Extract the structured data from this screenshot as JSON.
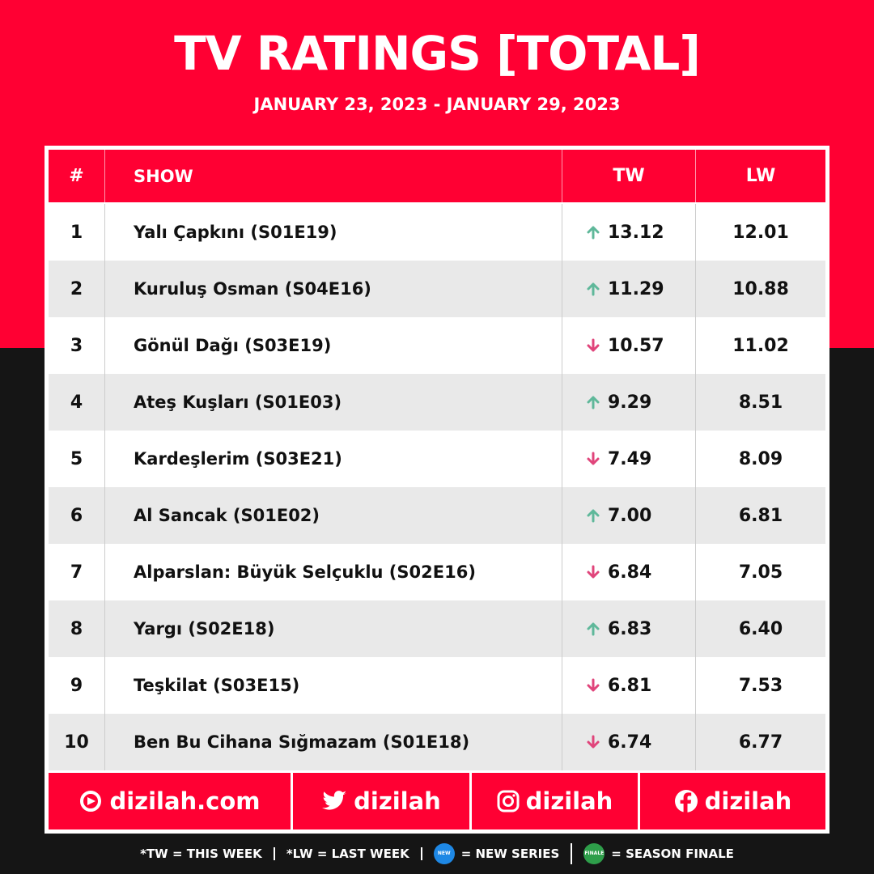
{
  "header": {
    "title": "TV RATINGS [TOTAL]",
    "subtitle": "JANUARY 23, 2023 - JANUARY 29, 2023"
  },
  "table": {
    "columns": [
      "#",
      "SHOW",
      "TW",
      "LW"
    ],
    "rows": [
      {
        "rank": 1,
        "show": "Yalı Çapkını (S01E19)",
        "tw": "13.12",
        "lw": "12.01",
        "trend": "up"
      },
      {
        "rank": 2,
        "show": "Kuruluş Osman (S04E16)",
        "tw": "11.29",
        "lw": "10.88",
        "trend": "up"
      },
      {
        "rank": 3,
        "show": "Gönül Dağı (S03E19)",
        "tw": "10.57",
        "lw": "11.02",
        "trend": "down"
      },
      {
        "rank": 4,
        "show": "Ateş Kuşları (S01E03)",
        "tw": "9.29",
        "lw": "8.51",
        "trend": "up"
      },
      {
        "rank": 5,
        "show": "Kardeşlerim (S03E21)",
        "tw": "7.49",
        "lw": "8.09",
        "trend": "down"
      },
      {
        "rank": 6,
        "show": "Al Sancak (S01E02)",
        "tw": "7.00",
        "lw": "6.81",
        "trend": "up"
      },
      {
        "rank": 7,
        "show": "Alparslan: Büyük Selçuklu (S02E16)",
        "tw": "6.84",
        "lw": "7.05",
        "trend": "down"
      },
      {
        "rank": 8,
        "show": "Yargı (S02E18)",
        "tw": "6.83",
        "lw": "6.40",
        "trend": "up"
      },
      {
        "rank": 9,
        "show": "Teşkilat (S03E15)",
        "tw": "6.81",
        "lw": "7.53",
        "trend": "down"
      },
      {
        "rank": 10,
        "show": "Ben Bu Cihana Sığmazam (S01E18)",
        "tw": "6.74",
        "lw": "6.77",
        "trend": "down"
      }
    ]
  },
  "footer": {
    "links": [
      "dizilah.com",
      "dizilah",
      "dizilah",
      "dizilah"
    ],
    "legend": [
      "*TW = THIS WEEK",
      "*LW = LAST WEEK",
      "= NEW SERIES",
      "= SEASON FINALE"
    ],
    "badges": [
      "NEW",
      "FINALE"
    ]
  }
}
